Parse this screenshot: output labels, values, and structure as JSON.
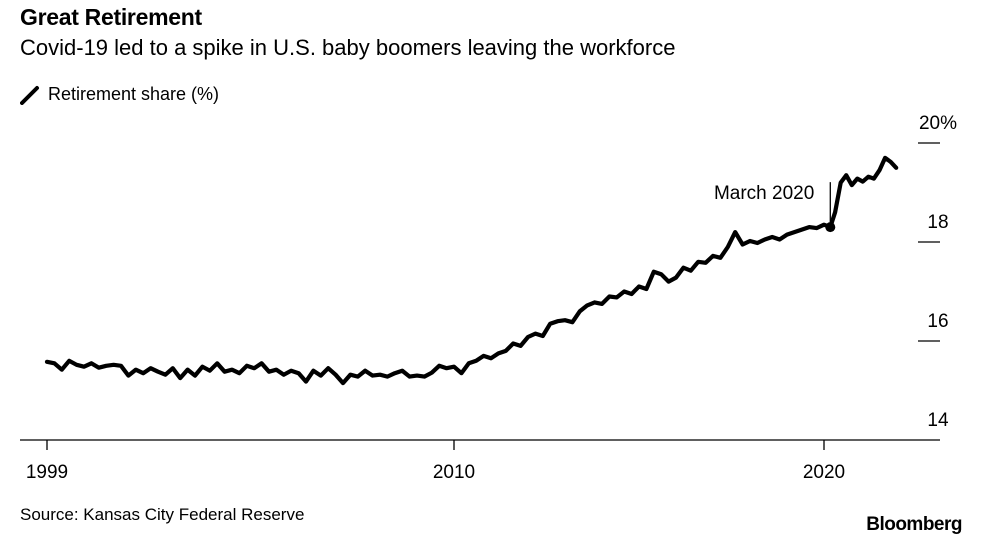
{
  "header": {
    "title": "Great Retirement",
    "subtitle": "Covid-19 led to a spike in U.S. baby boomers leaving the workforce"
  },
  "legend": {
    "label": "Retirement share (%)",
    "icon": "line-swatch-icon"
  },
  "footer": {
    "source": "Source: Kansas City Federal Reserve",
    "brand": "Bloomberg"
  },
  "colors": {
    "line": "#000000",
    "axis": "#000000",
    "background": "#ffffff"
  },
  "chart_data": {
    "type": "line",
    "title": "Great Retirement",
    "subtitle": "Covid-19 led to a spike in U.S. baby boomers leaving the workforce",
    "xlabel": "",
    "ylabel": "",
    "xlim": [
      1999,
      2023.2
    ],
    "ylim": [
      14,
      20
    ],
    "y_axis_side": "right",
    "grid": false,
    "x_ticks": [
      {
        "value": 1999,
        "label": "1999"
      },
      {
        "value": 2010,
        "label": "2010"
      },
      {
        "value": 2020,
        "label": "2020"
      }
    ],
    "y_ticks": [
      {
        "value": 20,
        "label": "20%"
      },
      {
        "value": 18,
        "label": "18"
      },
      {
        "value": 16,
        "label": "16"
      },
      {
        "value": 14,
        "label": "14"
      }
    ],
    "annotations": [
      {
        "text": "March 2020",
        "x": 2020.17,
        "y": 18.3
      }
    ],
    "series": [
      {
        "name": "Retirement share (%)",
        "points": [
          [
            1999.0,
            15.58
          ],
          [
            1999.2,
            15.55
          ],
          [
            1999.4,
            15.42
          ],
          [
            1999.6,
            15.6
          ],
          [
            1999.8,
            15.52
          ],
          [
            2000.0,
            15.48
          ],
          [
            2000.2,
            15.55
          ],
          [
            2000.4,
            15.46
          ],
          [
            2000.6,
            15.5
          ],
          [
            2000.8,
            15.52
          ],
          [
            2001.0,
            15.5
          ],
          [
            2001.2,
            15.3
          ],
          [
            2001.4,
            15.42
          ],
          [
            2001.6,
            15.35
          ],
          [
            2001.8,
            15.45
          ],
          [
            2002.0,
            15.38
          ],
          [
            2002.2,
            15.32
          ],
          [
            2002.4,
            15.45
          ],
          [
            2002.6,
            15.25
          ],
          [
            2002.8,
            15.42
          ],
          [
            2003.0,
            15.3
          ],
          [
            2003.2,
            15.48
          ],
          [
            2003.4,
            15.4
          ],
          [
            2003.6,
            15.55
          ],
          [
            2003.8,
            15.38
          ],
          [
            2004.0,
            15.42
          ],
          [
            2004.2,
            15.35
          ],
          [
            2004.4,
            15.5
          ],
          [
            2004.6,
            15.45
          ],
          [
            2004.8,
            15.55
          ],
          [
            2005.0,
            15.38
          ],
          [
            2005.2,
            15.42
          ],
          [
            2005.4,
            15.32
          ],
          [
            2005.6,
            15.4
          ],
          [
            2005.8,
            15.35
          ],
          [
            2006.0,
            15.18
          ],
          [
            2006.2,
            15.4
          ],
          [
            2006.4,
            15.3
          ],
          [
            2006.6,
            15.45
          ],
          [
            2006.8,
            15.32
          ],
          [
            2007.0,
            15.15
          ],
          [
            2007.2,
            15.32
          ],
          [
            2007.4,
            15.28
          ],
          [
            2007.6,
            15.4
          ],
          [
            2007.8,
            15.3
          ],
          [
            2008.0,
            15.32
          ],
          [
            2008.2,
            15.28
          ],
          [
            2008.4,
            15.35
          ],
          [
            2008.6,
            15.4
          ],
          [
            2008.8,
            15.28
          ],
          [
            2009.0,
            15.3
          ],
          [
            2009.2,
            15.28
          ],
          [
            2009.4,
            15.36
          ],
          [
            2009.6,
            15.5
          ],
          [
            2009.8,
            15.45
          ],
          [
            2010.0,
            15.48
          ],
          [
            2010.2,
            15.35
          ],
          [
            2010.4,
            15.55
          ],
          [
            2010.6,
            15.6
          ],
          [
            2010.8,
            15.7
          ],
          [
            2011.0,
            15.65
          ],
          [
            2011.2,
            15.75
          ],
          [
            2011.4,
            15.8
          ],
          [
            2011.6,
            15.95
          ],
          [
            2011.8,
            15.9
          ],
          [
            2012.0,
            16.08
          ],
          [
            2012.2,
            16.15
          ],
          [
            2012.4,
            16.1
          ],
          [
            2012.6,
            16.35
          ],
          [
            2012.8,
            16.4
          ],
          [
            2013.0,
            16.42
          ],
          [
            2013.2,
            16.38
          ],
          [
            2013.4,
            16.6
          ],
          [
            2013.6,
            16.72
          ],
          [
            2013.8,
            16.78
          ],
          [
            2014.0,
            16.75
          ],
          [
            2014.2,
            16.9
          ],
          [
            2014.4,
            16.88
          ],
          [
            2014.6,
            17.0
          ],
          [
            2014.8,
            16.95
          ],
          [
            2015.0,
            17.1
          ],
          [
            2015.2,
            17.05
          ],
          [
            2015.4,
            17.4
          ],
          [
            2015.6,
            17.35
          ],
          [
            2015.8,
            17.2
          ],
          [
            2016.0,
            17.28
          ],
          [
            2016.2,
            17.48
          ],
          [
            2016.4,
            17.42
          ],
          [
            2016.6,
            17.6
          ],
          [
            2016.8,
            17.58
          ],
          [
            2017.0,
            17.72
          ],
          [
            2017.2,
            17.68
          ],
          [
            2017.4,
            17.9
          ],
          [
            2017.6,
            18.2
          ],
          [
            2017.8,
            17.95
          ],
          [
            2018.0,
            18.02
          ],
          [
            2018.2,
            17.98
          ],
          [
            2018.4,
            18.05
          ],
          [
            2018.6,
            18.1
          ],
          [
            2018.8,
            18.05
          ],
          [
            2019.0,
            18.15
          ],
          [
            2019.2,
            18.2
          ],
          [
            2019.4,
            18.25
          ],
          [
            2019.6,
            18.3
          ],
          [
            2019.8,
            18.28
          ],
          [
            2020.0,
            18.35
          ],
          [
            2020.17,
            18.3
          ],
          [
            2020.3,
            18.6
          ],
          [
            2020.45,
            19.2
          ],
          [
            2020.6,
            19.35
          ],
          [
            2020.75,
            19.15
          ],
          [
            2020.9,
            19.28
          ],
          [
            2021.05,
            19.22
          ],
          [
            2021.2,
            19.32
          ],
          [
            2021.35,
            19.28
          ],
          [
            2021.5,
            19.45
          ],
          [
            2021.65,
            19.7
          ],
          [
            2021.8,
            19.62
          ],
          [
            2021.95,
            19.5
          ]
        ]
      }
    ]
  }
}
